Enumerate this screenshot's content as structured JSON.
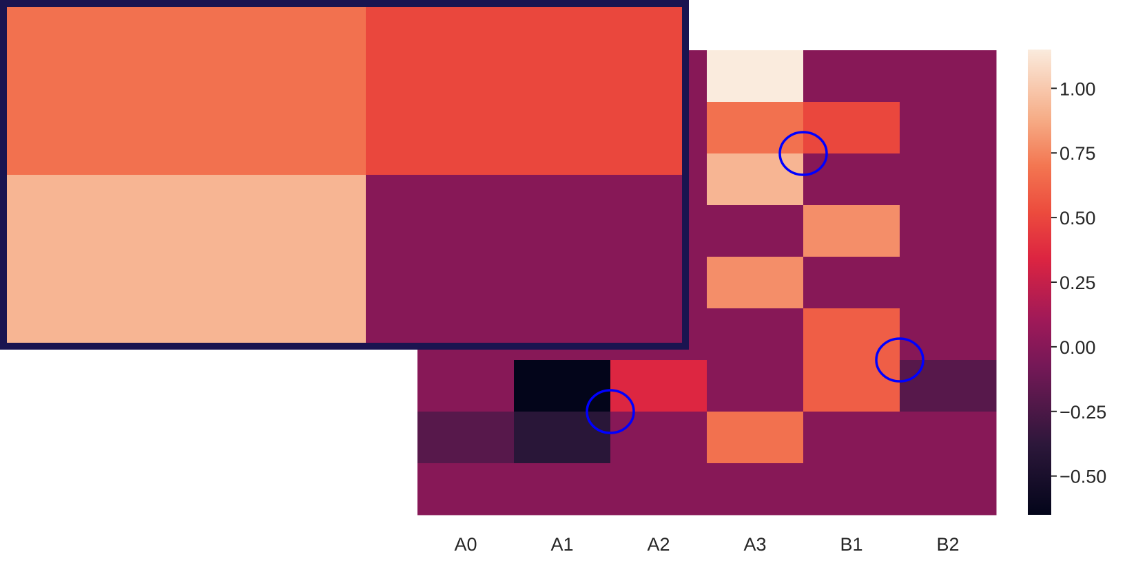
{
  "chart_data": {
    "type": "heatmap",
    "title": "",
    "xlabel": "",
    "ylabel": "",
    "x_categories": [
      "A0",
      "A1",
      "A2",
      "A3",
      "B1",
      "B2"
    ],
    "rows_visible": 9,
    "values": [
      [
        0,
        0,
        0,
        1.15,
        0,
        0
      ],
      [
        0,
        0,
        0,
        0.68,
        0.5,
        0
      ],
      [
        0,
        0,
        0,
        0.92,
        0,
        0
      ],
      [
        0,
        0,
        0,
        0,
        0.78,
        0
      ],
      [
        0,
        0,
        0,
        0.78,
        0,
        0
      ],
      [
        0,
        0,
        0,
        0,
        0.6,
        0
      ],
      [
        0,
        -0.65,
        0.35,
        0,
        0.6,
        -0.2
      ],
      [
        -0.2,
        -0.4,
        0,
        0.68,
        0,
        0
      ],
      [
        0,
        0,
        0,
        0,
        0,
        0
      ]
    ],
    "colorbar": {
      "range": [
        -0.65,
        1.15
      ],
      "ticks": [
        "1.00",
        "0.75",
        "0.50",
        "0.25",
        "0.00",
        "−0.25",
        "−0.50"
      ],
      "tick_values": [
        1.0,
        0.75,
        0.5,
        0.25,
        0.0,
        -0.25,
        -0.5
      ],
      "colormap": "rocket"
    },
    "annotations": [
      {
        "type": "ellipse",
        "color": "#0000ff",
        "at_col_boundary": [
          3,
          4
        ],
        "at_row_boundary": [
          1,
          2
        ]
      },
      {
        "type": "ellipse",
        "color": "#0000ff",
        "at_col_boundary": [
          4,
          5
        ],
        "at_row_boundary": [
          5,
          6
        ]
      },
      {
        "type": "ellipse",
        "color": "#0000ff",
        "at_col_boundary": [
          1,
          2
        ],
        "at_row_boundary": [
          6,
          7
        ]
      }
    ],
    "inset": {
      "border_color": "#1a1450",
      "shows_rows": [
        1,
        2
      ],
      "shows_cols": [
        3,
        4
      ]
    }
  }
}
